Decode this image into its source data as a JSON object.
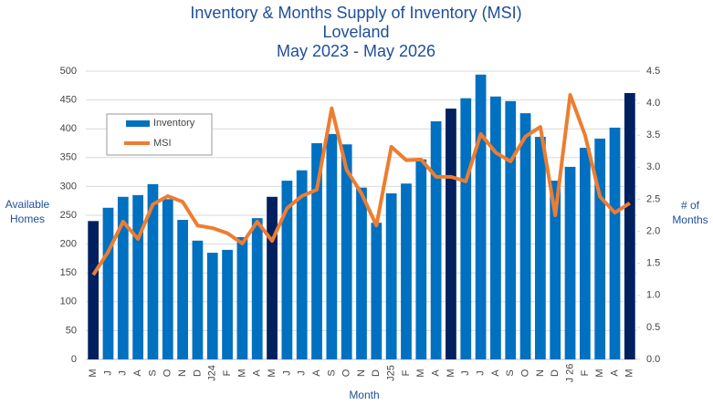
{
  "chart_data": {
    "type": "bar_line",
    "title": [
      "Inventory & Months Supply of Inventory (MSI)",
      "Loveland",
      "May 2023 - May 2026"
    ],
    "xlabel": "Month",
    "ylabel": [
      "Available",
      "Homes"
    ],
    "y2label": [
      "# of",
      "Months"
    ],
    "categories": [
      "M",
      "J",
      "J",
      "A",
      "S",
      "O",
      "N",
      "D",
      "J24",
      "F",
      "M",
      "A",
      "M",
      "J",
      "J",
      "A",
      "S",
      "O",
      "N",
      "D",
      "J25",
      "F",
      "M",
      "A",
      "M",
      "J",
      "J",
      "A",
      "S",
      "O",
      "N",
      "D",
      "J 26",
      "F",
      "M",
      "A",
      "M"
    ],
    "series": [
      {
        "name": "Inventory",
        "type": "bar",
        "color": "#0070c0",
        "colors": [
          "#002060",
          "#0070c0",
          "#0070c0",
          "#0070c0",
          "#0070c0",
          "#0070c0",
          "#0070c0",
          "#0070c0",
          "#0070c0",
          "#0070c0",
          "#0070c0",
          "#0070c0",
          "#002060",
          "#0070c0",
          "#0070c0",
          "#0070c0",
          "#0070c0",
          "#0070c0",
          "#0070c0",
          "#0070c0",
          "#0070c0",
          "#0070c0",
          "#0070c0",
          "#0070c0",
          "#002060",
          "#0070c0",
          "#0070c0",
          "#0070c0",
          "#0070c0",
          "#0070c0",
          "#0070c0",
          "#0070c0",
          "#0070c0",
          "#0070c0",
          "#0070c0",
          "#0070c0",
          "#002060"
        ],
        "values": [
          240,
          263,
          282,
          285,
          304,
          278,
          242,
          206,
          185,
          190,
          212,
          245,
          282,
          310,
          328,
          375,
          391,
          373,
          298,
          237,
          288,
          305,
          347,
          413,
          435,
          453,
          494,
          456,
          448,
          427,
          386,
          310,
          334,
          367,
          383,
          402,
          462
        ]
      },
      {
        "name": "MSI",
        "type": "line",
        "axis": "y2",
        "color": "#ed7d31",
        "values": [
          1.32,
          1.68,
          2.15,
          1.88,
          2.42,
          2.55,
          2.46,
          2.09,
          2.05,
          1.97,
          1.81,
          2.15,
          1.85,
          2.36,
          2.55,
          2.65,
          3.92,
          2.96,
          2.59,
          2.09,
          3.32,
          3.11,
          3.12,
          2.85,
          2.85,
          2.78,
          3.52,
          3.23,
          3.09,
          3.48,
          3.63,
          2.25,
          4.13,
          3.5,
          2.54,
          2.29,
          2.44
        ]
      }
    ],
    "ylim": [
      0,
      500
    ],
    "yticks": [
      0,
      50,
      100,
      150,
      200,
      250,
      300,
      350,
      400,
      450,
      500
    ],
    "y2lim": [
      0,
      4.5
    ],
    "y2ticks": [
      {
        "value": 0,
        "label": "0.0"
      },
      0.5,
      {
        "value": 1,
        "label": "1.0"
      },
      1.5,
      {
        "value": 2,
        "label": "2.0"
      },
      2.5,
      {
        "value": 3,
        "label": "3.0"
      },
      3.5,
      {
        "value": 4,
        "label": "4.0"
      },
      4.5
    ],
    "grid": true
  }
}
